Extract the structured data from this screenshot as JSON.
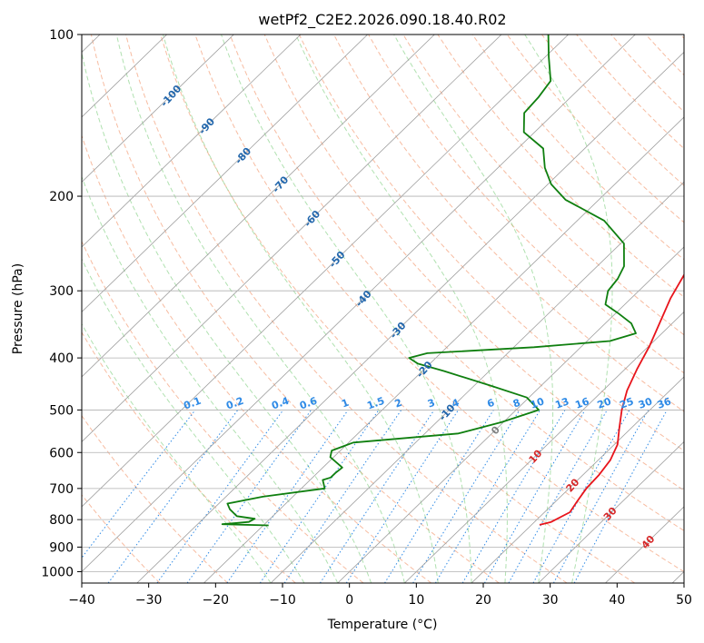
{
  "chart_data": {
    "type": "line",
    "subtype": "skew-T log-P diagram",
    "title": "wetPf2_C2E2.2026.090.18.40.R02",
    "xlabel": "Temperature (°C)",
    "ylabel": "Pressure (hPa)",
    "xlim": [
      -40,
      50
    ],
    "ylim": [
      1050,
      100
    ],
    "x_ticks": [
      -40,
      -30,
      -20,
      -10,
      0,
      10,
      20,
      30,
      40,
      50
    ],
    "x_tick_labels": [
      "−40",
      "−30",
      "−20",
      "−10",
      "0",
      "10",
      "20",
      "30",
      "40",
      "50"
    ],
    "y_ticks": [
      100,
      200,
      300,
      400,
      500,
      600,
      700,
      800,
      900,
      1000
    ],
    "y_tick_labels": [
      "100",
      "200",
      "300",
      "400",
      "500",
      "600",
      "700",
      "800",
      "900",
      "1000"
    ],
    "grid": true,
    "colors": {
      "temperature": "#e8141b",
      "dewpoint": "#0f7f0f",
      "isotherm": "#9e9e9e",
      "dry_adiabat": "#f4a582",
      "moist_adiabat": "#7ccd7c",
      "mixing_ratio": "#2e8ae6",
      "isotherm_label": "#2166ac",
      "isotherm_label_warm": "#d62728",
      "isotherm_label_zero": "#808080"
    },
    "series": [
      {
        "name": "Temperature",
        "color": "#e8141b",
        "points": [
          [
            21.2,
            818
          ],
          [
            22.5,
            808
          ],
          [
            23.8,
            775
          ],
          [
            23.2,
            740
          ],
          [
            22.6,
            700
          ],
          [
            22.4,
            660
          ],
          [
            21.8,
            620
          ],
          [
            20.5,
            580
          ],
          [
            18.2,
            540
          ],
          [
            15.8,
            500
          ],
          [
            13.6,
            460
          ],
          [
            11.8,
            420
          ],
          [
            10.1,
            380
          ],
          [
            8.1,
            345
          ],
          [
            5.9,
            310
          ],
          [
            4.3,
            280
          ],
          [
            2.8,
            255
          ],
          [
            2.2,
            235
          ],
          [
            2.0,
            215
          ],
          [
            1.6,
            195
          ],
          [
            1.2,
            178
          ],
          [
            1.0,
            165
          ],
          [
            1.0,
            152
          ],
          [
            2.0,
            140
          ],
          [
            3.2,
            130
          ],
          [
            5.3,
            122
          ],
          [
            7.3,
            116
          ],
          [
            9.5,
            110
          ],
          [
            11.1,
            105
          ],
          [
            11.6,
            100
          ]
        ]
      },
      {
        "name": "Dewpoint",
        "color": "#0f7f0f",
        "points": [
          [
            -19.2,
            820
          ],
          [
            -26.3,
            816
          ],
          [
            -22.7,
            808
          ],
          [
            -22.3,
            797
          ],
          [
            -25.4,
            788
          ],
          [
            -27.5,
            765
          ],
          [
            -28.7,
            747
          ],
          [
            -24.5,
            725
          ],
          [
            -16.5,
            700
          ],
          [
            -18.1,
            675
          ],
          [
            -17.3,
            668
          ],
          [
            -17.3,
            655
          ],
          [
            -17.1,
            640
          ],
          [
            -20.5,
            612
          ],
          [
            -21.3,
            595
          ],
          [
            -19.3,
            575
          ],
          [
            -5.0,
            553
          ],
          [
            -0.3,
            527
          ],
          [
            3.4,
            500
          ],
          [
            -0.3,
            474
          ],
          [
            -7.7,
            450
          ],
          [
            -16.8,
            423
          ],
          [
            -21.8,
            410
          ],
          [
            -24.0,
            400
          ],
          [
            -22.0,
            392
          ],
          [
            -7.0,
            382
          ],
          [
            3.4,
            372
          ],
          [
            6.1,
            360
          ],
          [
            3.9,
            345
          ],
          [
            0.3,
            330
          ],
          [
            -2.9,
            318
          ],
          [
            -4.6,
            300
          ],
          [
            -5.0,
            285
          ],
          [
            -6.0,
            270
          ],
          [
            -9.5,
            245
          ],
          [
            -16.0,
            222
          ],
          [
            -25.0,
            203
          ],
          [
            -29.5,
            190
          ],
          [
            -33.0,
            177
          ],
          [
            -36.2,
            163
          ],
          [
            -41.6,
            152
          ],
          [
            -44.5,
            140
          ],
          [
            -44.8,
            131
          ],
          [
            -45.5,
            122
          ],
          [
            -49.5,
            110
          ],
          [
            -53.0,
            100
          ]
        ]
      }
    ],
    "isotherm_labels": [
      "-100",
      "-90",
      "-80",
      "-70",
      "-60",
      "-50",
      "-40",
      "-30",
      "-20",
      "-10",
      "0",
      "10",
      "20",
      "30",
      "40"
    ],
    "mixing_ratio_labels": [
      "0.1",
      "0.2",
      "0.4",
      "0.6",
      "1",
      "1.5",
      "2",
      "3",
      "4",
      "6",
      "8",
      "10",
      "13",
      "16",
      "20",
      "25",
      "30",
      "36"
    ]
  }
}
